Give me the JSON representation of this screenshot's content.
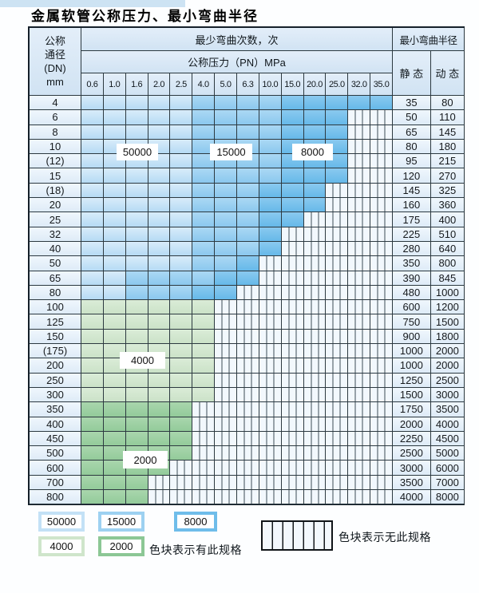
{
  "page": {
    "title": "金属软管公称压力、最小弯曲半径"
  },
  "table": {
    "header": {
      "dn_lines": [
        "公称",
        "通径",
        "(DN)",
        "mm"
      ],
      "bend_cycles": "最少弯曲次数，次",
      "pressure": "公称压力（PN）MPa",
      "radius": "最小弯曲半径",
      "static": "静 态",
      "dynamic": "动 态",
      "pressure_ticks": [
        "0.6",
        "1.0",
        "1.6",
        "2.0",
        "2.5",
        "4.0",
        "5.0",
        "6.3",
        "10.0",
        "15.0",
        "20.0",
        "25.0",
        "32.0",
        "35.0"
      ]
    },
    "zone_legend_meaning": {
      "L": "50000",
      "M": "15000",
      "D": "8000",
      "G": "4000",
      "g": "2000",
      "S": "无此规格"
    },
    "zone_colors": {
      "blue_50000": "#c3e1f6",
      "blue_15000": "#9dd1f1",
      "blue_8000": "#6fbdea",
      "green_4000": "#cfe5cb",
      "green_2000": "#8cc795",
      "striped_none": "#f2f8fd"
    },
    "rows": [
      {
        "dn": "4",
        "cells": "LLLLLMMMMDDDDD",
        "static": "35",
        "dynamic": "80"
      },
      {
        "dn": "6",
        "cells": "LLLLLMMMMDDDSS",
        "static": "50",
        "dynamic": "110"
      },
      {
        "dn": "8",
        "cells": "LLLLLMMMMDDDSS",
        "static": "65",
        "dynamic": "145"
      },
      {
        "dn": "10",
        "cells": "LLLLLMMMMDDDSS",
        "static": "80",
        "dynamic": "180"
      },
      {
        "dn": "(12)",
        "cells": "LLLLLMMMMDDDSS",
        "static": "95",
        "dynamic": "215"
      },
      {
        "dn": "15",
        "cells": "LLLLLMMMMDDDSS",
        "static": "120",
        "dynamic": "270"
      },
      {
        "dn": "(18)",
        "cells": "LLLLLMMMDDDSSS",
        "static": "145",
        "dynamic": "325"
      },
      {
        "dn": "20",
        "cells": "LLLLLMMMDDDSSS",
        "static": "160",
        "dynamic": "360"
      },
      {
        "dn": "25",
        "cells": "LLLLLMMMDDSSSS",
        "static": "175",
        "dynamic": "400"
      },
      {
        "dn": "32",
        "cells": "LLLLLMMMDSSSSS",
        "static": "225",
        "dynamic": "510"
      },
      {
        "dn": "40",
        "cells": "LLLLLMMMDSSSSS",
        "static": "280",
        "dynamic": "640"
      },
      {
        "dn": "50",
        "cells": "LLLLLMMDSSSSSS",
        "static": "350",
        "dynamic": "800"
      },
      {
        "dn": "65",
        "cells": "LLMMMMDDSSSSSS",
        "static": "390",
        "dynamic": "845"
      },
      {
        "dn": "80",
        "cells": "LLMMMDDSSSSSSS",
        "static": "480",
        "dynamic": "1000"
      },
      {
        "dn": "100",
        "cells": "GGGGGGSSSSSSSS",
        "static": "600",
        "dynamic": "1200"
      },
      {
        "dn": "125",
        "cells": "GGGGGGSSSSSSSS",
        "static": "750",
        "dynamic": "1500"
      },
      {
        "dn": "150",
        "cells": "GGGGGGSSSSSSSS",
        "static": "900",
        "dynamic": "1800"
      },
      {
        "dn": "(175)",
        "cells": "GGGGGGSSSSSSSS",
        "static": "1000",
        "dynamic": "2000"
      },
      {
        "dn": "200",
        "cells": "GGGGGGSSSSSSSS",
        "static": "1000",
        "dynamic": "2000"
      },
      {
        "dn": "250",
        "cells": "GGGGGGSSSSSSSS",
        "static": "1250",
        "dynamic": "2500"
      },
      {
        "dn": "300",
        "cells": "GGGGGGSSSSSSSS",
        "static": "1500",
        "dynamic": "3000"
      },
      {
        "dn": "350",
        "cells": "gggggSSSSSSSSS",
        "static": "1750",
        "dynamic": "3500"
      },
      {
        "dn": "400",
        "cells": "gggggSSSSSSSSS",
        "static": "2000",
        "dynamic": "4000"
      },
      {
        "dn": "450",
        "cells": "gggggSSSSSSSSS",
        "static": "2250",
        "dynamic": "4500"
      },
      {
        "dn": "500",
        "cells": "gggggSSSSSSSSS",
        "static": "2500",
        "dynamic": "5000"
      },
      {
        "dn": "600",
        "cells": "ggggSSSSSSSSSS",
        "static": "3000",
        "dynamic": "6000"
      },
      {
        "dn": "700",
        "cells": "gggSSSSSSSSSSS",
        "static": "3500",
        "dynamic": "7000"
      },
      {
        "dn": "800",
        "cells": "gggSSSSSSSSSSS",
        "static": "4000",
        "dynamic": "8000"
      }
    ]
  },
  "overlays": [
    {
      "text": "50000"
    },
    {
      "text": "15000"
    },
    {
      "text": "8000"
    },
    {
      "text": "4000"
    },
    {
      "text": "2000"
    }
  ],
  "legend": {
    "chips": [
      {
        "label": "50000"
      },
      {
        "label": "15000"
      },
      {
        "label": "8000"
      },
      {
        "label": "4000"
      },
      {
        "label": "2000"
      }
    ],
    "has_spec_note": "色块表示有此规格",
    "no_spec_note": "色块表示无此规格"
  }
}
